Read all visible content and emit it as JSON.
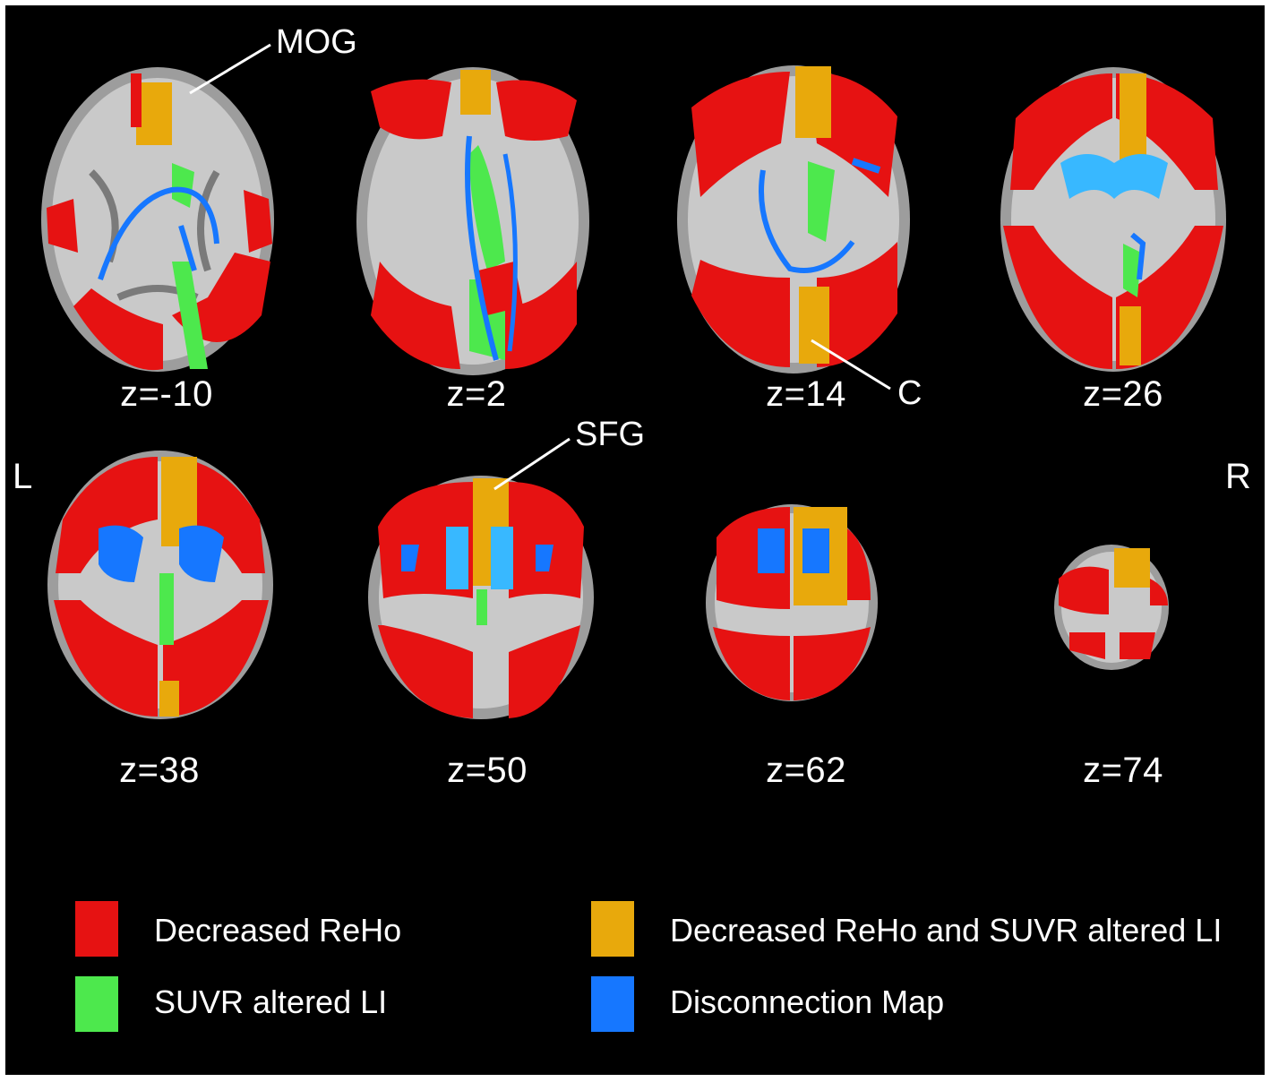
{
  "colors": {
    "background": "#000000",
    "decreased_reho": "#e61212",
    "overlap": "#e8a90c",
    "suvr_altered_li": "#4de84d",
    "disconnection_map": "#1677ff",
    "disconnection_light": "#38b8ff",
    "brain_gray": "#b8b8b8"
  },
  "side_labels": {
    "left": "L",
    "right": "R"
  },
  "annotations": {
    "mog": "MOG",
    "c": "C",
    "sfg": "SFG"
  },
  "slices": [
    {
      "label": "z=-10"
    },
    {
      "label": "z=2"
    },
    {
      "label": "z=14"
    },
    {
      "label": "z=26"
    },
    {
      "label": "z=38"
    },
    {
      "label": "z=50"
    },
    {
      "label": "z=62"
    },
    {
      "label": "z=74"
    }
  ],
  "legend": [
    {
      "label": "Decreased ReHo",
      "color": "#e61212"
    },
    {
      "label": "Decreased ReHo and SUVR altered LI",
      "color": "#e8a90c"
    },
    {
      "label": "SUVR altered LI",
      "color": "#4de84d"
    },
    {
      "label": "Disconnection Map",
      "color": "#1677ff"
    }
  ]
}
